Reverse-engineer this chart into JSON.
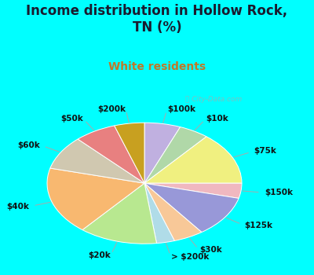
{
  "title": "Income distribution in Hollow Rock,\nTN (%)",
  "subtitle": "White residents",
  "bg_cyan": "#00FFFF",
  "bg_chart_top": "#e8f8f0",
  "bg_chart_bottom": "#c8ecd8",
  "title_color": "#1a1a2e",
  "subtitle_color": "#c07828",
  "watermark": "Ⓢ City-Data.com",
  "labels": [
    "$100k",
    "$10k",
    "$75k",
    "$150k",
    "$125k",
    "$30k",
    "> $200k",
    "$20k",
    "$40k",
    "$60k",
    "$50k",
    "$200k"
  ],
  "values": [
    6,
    5,
    14,
    4,
    11,
    5,
    3,
    13,
    18,
    9,
    7,
    5
  ],
  "colors": [
    "#c0b0e0",
    "#b0d8a8",
    "#f0f080",
    "#f0b8c0",
    "#9898d8",
    "#f8c898",
    "#b0dce8",
    "#b8e890",
    "#f8b870",
    "#d0c8b0",
    "#e88080",
    "#c8a020"
  ],
  "startangle": 90,
  "figsize": [
    4.0,
    3.5
  ],
  "dpi": 100,
  "title_fontsize": 12,
  "subtitle_fontsize": 10,
  "label_fontsize": 7.5
}
